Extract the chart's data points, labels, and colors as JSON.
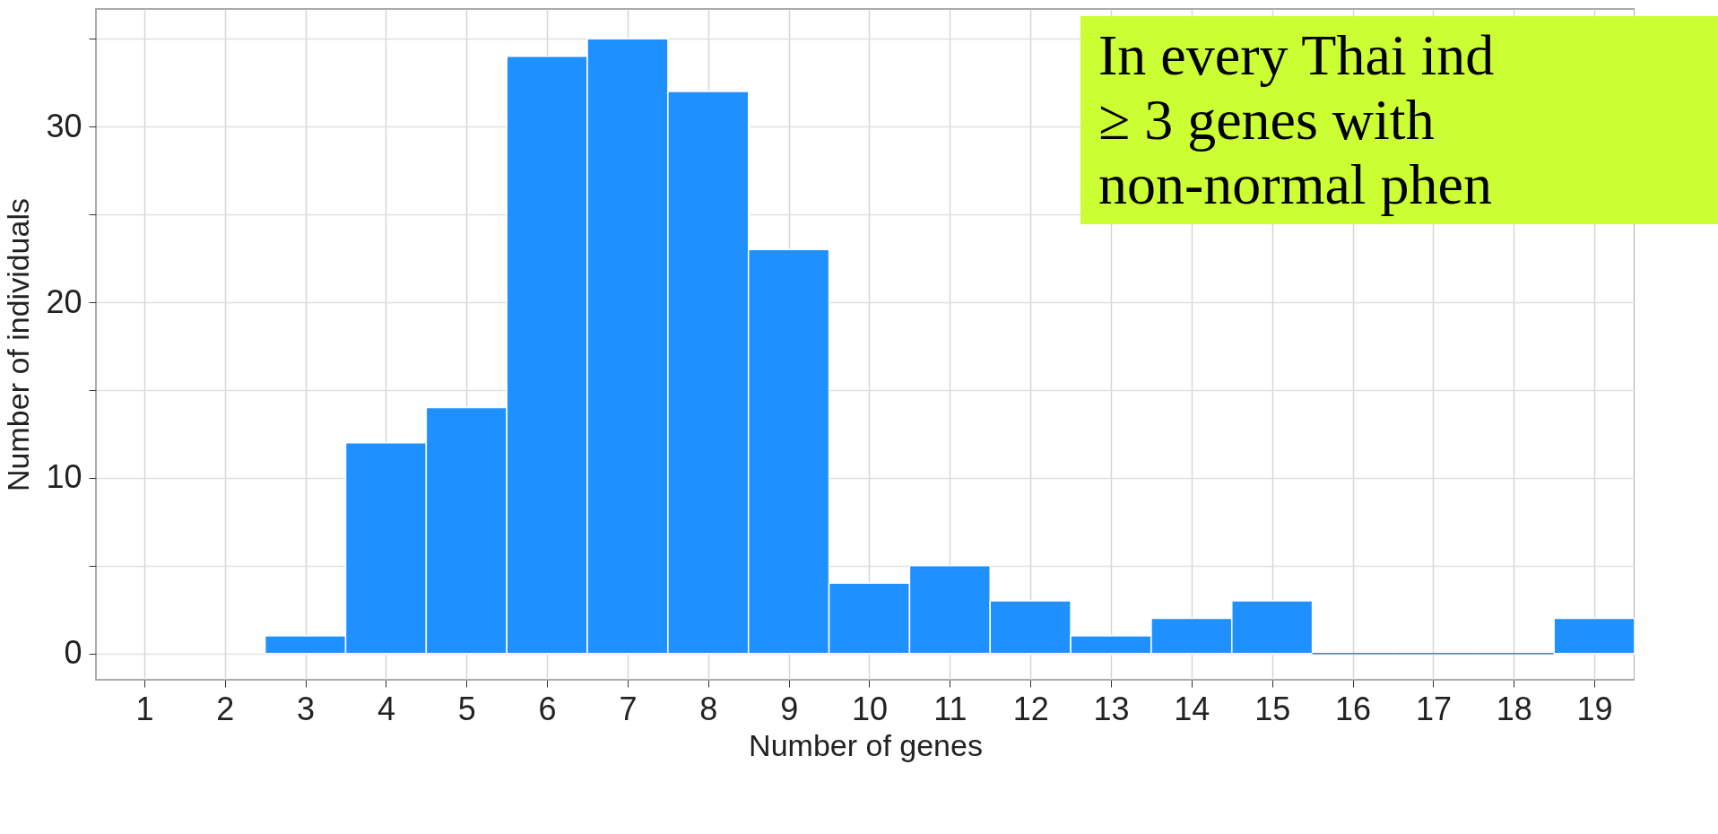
{
  "chart_data": {
    "type": "histogram",
    "xlabel": "Number of genes",
    "ylabel": "Number of individuals",
    "bins": [
      2.5,
      3.5,
      4.5,
      5.5,
      6.5,
      7.5,
      8.5,
      9.5,
      10.5,
      11.5,
      12.5,
      13.5,
      14.5,
      15.5,
      16.5,
      17.5,
      18.5,
      19.5
    ],
    "values": [
      1,
      12,
      14,
      34,
      35,
      32,
      23,
      4,
      5,
      3,
      1,
      2,
      3,
      0,
      0,
      0,
      2
    ],
    "color": "#1e90ff",
    "xlim": [
      0.4,
      19.5
    ],
    "xticks": [
      1,
      2,
      3,
      4,
      5,
      6,
      7,
      8,
      9,
      10,
      11,
      12,
      13,
      14,
      15,
      16,
      17,
      18,
      19
    ],
    "ylim": [
      -1.5,
      36.7
    ],
    "yticks": [
      0,
      {
        "value": 5,
        "label": null
      },
      10,
      {
        "value": 15,
        "label": null
      },
      20,
      {
        "value": 25,
        "label": null
      },
      30,
      {
        "value": 35,
        "label": null
      }
    ],
    "grid": true,
    "annotations": [
      "In every Thai ind",
      "≥ 3 genes with",
      "non-normal phen"
    ]
  }
}
